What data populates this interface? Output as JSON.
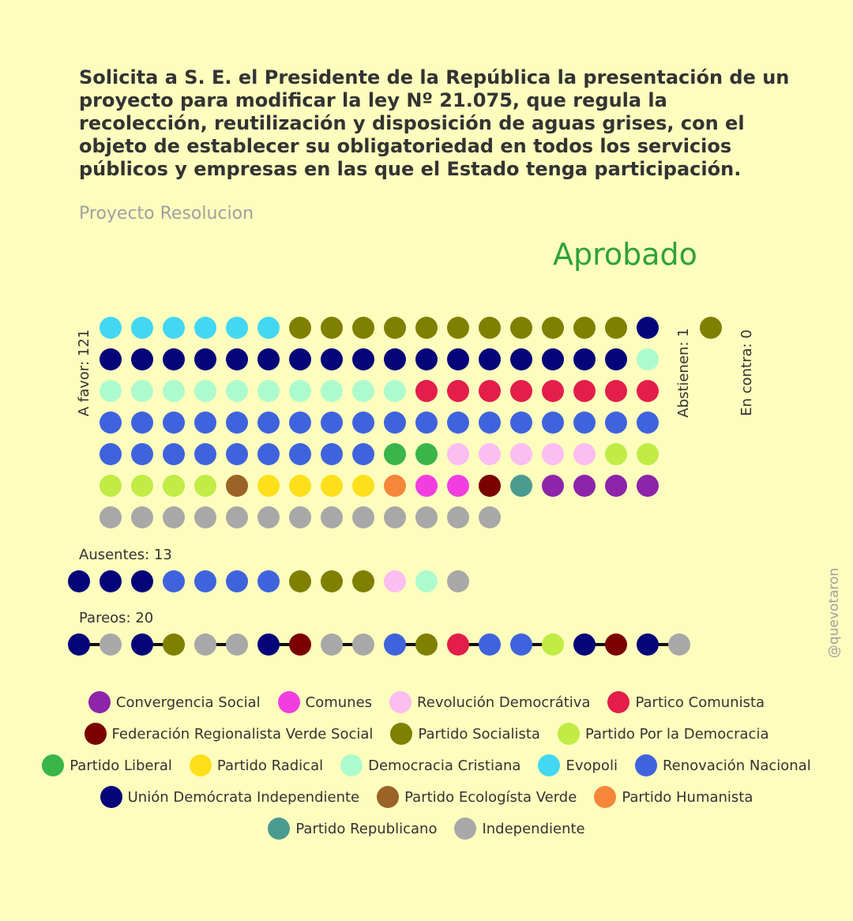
{
  "title": "Solicita a S. E. el Presidente de la República la presentación de un proyecto para modificar la ley Nº 21.075, que regula la recolección, reutilización y disposición de aguas grises, con el objeto de establecer su obligatoriedad en todos los servicios públicos y empresas en las que el Estado tenga participación.",
  "subtitle": "Proyecto Resolucion",
  "result": "Aprobado",
  "watermark": "@quevotaron",
  "colors": {
    "background": "#fdfdbe",
    "approved": "#2ea23a",
    "pareo_line": "#111111"
  },
  "legend": [
    {
      "code": "CS",
      "label": "Convergencia Social",
      "color": "#8e24aa"
    },
    {
      "code": "COM",
      "label": "Comunes",
      "color": "#f23ee0"
    },
    {
      "code": "RD",
      "label": "Revolución Democrátiva",
      "color": "#fcbdf0"
    },
    {
      "code": "PC",
      "label": "Partico Comunista",
      "color": "#e31e4a"
    },
    {
      "code": "FRVS",
      "label": "Federación Regionalista Verde Social",
      "color": "#7b0000"
    },
    {
      "code": "PS",
      "label": "Partido Socialista",
      "color": "#7f7f00"
    },
    {
      "code": "PPD",
      "label": "Partido Por la Democracia",
      "color": "#c0ec45"
    },
    {
      "code": "PL",
      "label": "Partido Liberal",
      "color": "#39b54a"
    },
    {
      "code": "PR",
      "label": "Partido Radical",
      "color": "#fde01a"
    },
    {
      "code": "DC",
      "label": "Democracia Cristiana",
      "color": "#adfbcd"
    },
    {
      "code": "EVO",
      "label": "Evopoli",
      "color": "#43d7f3"
    },
    {
      "code": "RN",
      "label": "Renovación Nacional",
      "color": "#3f63dd"
    },
    {
      "code": "UDI",
      "label": "Unión Demócrata Independiente",
      "color": "#05057a"
    },
    {
      "code": "PEV",
      "label": "Partido Ecologísta Verde",
      "color": "#9b6326"
    },
    {
      "code": "PH",
      "label": "Partido Humanista",
      "color": "#f5863a"
    },
    {
      "code": "REP",
      "label": "Partido Republicano",
      "color": "#4a9b8f"
    },
    {
      "code": "IND",
      "label": "Independiente",
      "color": "#a8a8a8"
    }
  ],
  "chart_data": {
    "type": "waffle",
    "groups": [
      {
        "key": "favor",
        "label": "A favor: 121",
        "count": 121,
        "members": [
          "EVO",
          "EVO",
          "EVO",
          "EVO",
          "EVO",
          "EVO",
          "PS",
          "PS",
          "PS",
          "PS",
          "PS",
          "PS",
          "PS",
          "PS",
          "PS",
          "PS",
          "PS",
          "UDI",
          "UDI",
          "UDI",
          "UDI",
          "UDI",
          "UDI",
          "UDI",
          "UDI",
          "UDI",
          "UDI",
          "UDI",
          "UDI",
          "UDI",
          "UDI",
          "UDI",
          "UDI",
          "UDI",
          "UDI",
          "DC",
          "DC",
          "DC",
          "DC",
          "DC",
          "DC",
          "DC",
          "DC",
          "DC",
          "DC",
          "DC",
          "PC",
          "PC",
          "PC",
          "PC",
          "PC",
          "PC",
          "PC",
          "PC",
          "RN",
          "RN",
          "RN",
          "RN",
          "RN",
          "RN",
          "RN",
          "RN",
          "RN",
          "RN",
          "RN",
          "RN",
          "RN",
          "RN",
          "RN",
          "RN",
          "RN",
          "RN",
          "RN",
          "RN",
          "RN",
          "RN",
          "RN",
          "RN",
          "RN",
          "RN",
          "RN",
          "PL",
          "PL",
          "RD",
          "RD",
          "RD",
          "RD",
          "RD",
          "PPD",
          "PPD",
          "PPD",
          "PPD",
          "PPD",
          "PPD",
          "PEV",
          "PR",
          "PR",
          "PR",
          "PR",
          "PH",
          "COM",
          "COM",
          "FRVS",
          "REP",
          "CS",
          "CS",
          "CS",
          "CS",
          "IND",
          "IND",
          "IND",
          "IND",
          "IND",
          "IND",
          "IND",
          "IND",
          "IND",
          "IND",
          "IND",
          "IND",
          "IND"
        ]
      },
      {
        "key": "abstienen",
        "label": "Abstienen: 1",
        "count": 1,
        "members": [
          "PS"
        ]
      },
      {
        "key": "contra",
        "label": "En contra: 0",
        "count": 0,
        "members": []
      },
      {
        "key": "ausentes",
        "label": "Ausentes: 13",
        "count": 13,
        "members": [
          "UDI",
          "UDI",
          "UDI",
          "RN",
          "RN",
          "RN",
          "RN",
          "PS",
          "PS",
          "PS",
          "RD",
          "DC",
          "IND"
        ]
      },
      {
        "key": "pareos",
        "label": "Pareos: 20",
        "count": 20,
        "pairs": [
          [
            "UDI",
            "IND"
          ],
          [
            "UDI",
            "PS"
          ],
          [
            "IND",
            "IND"
          ],
          [
            "UDI",
            "FRVS"
          ],
          [
            "IND",
            "IND"
          ],
          [
            "RN",
            "PS"
          ],
          [
            "PC",
            "RN"
          ],
          [
            "RN",
            "PPD"
          ],
          [
            "UDI",
            "FRVS"
          ],
          [
            "UDI",
            "IND"
          ]
        ]
      }
    ]
  }
}
